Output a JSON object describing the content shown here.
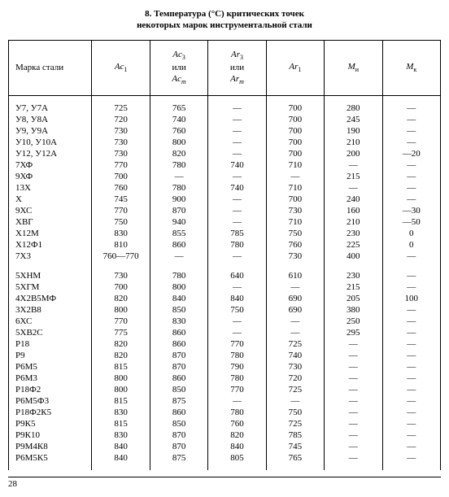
{
  "title_line1": "8. Температура (°C) критических точек",
  "title_line2": "некоторых марок инструментальной стали",
  "headers": {
    "name": "Марка стали",
    "ac1": "Ac₁",
    "ac3": "Ac₃\nили\nAcₘ",
    "ar3": "Ar₃\nили\nArₘ",
    "ar1": "Ar₁",
    "mi": "Mи",
    "mk": "Mк"
  },
  "rows_group1": [
    {
      "name": "У7, У7А",
      "ac1": "725",
      "ac3": "765",
      "ar3": "—",
      "ar1": "700",
      "mi": "280",
      "mk": "—"
    },
    {
      "name": "У8, У8А",
      "ac1": "720",
      "ac3": "740",
      "ar3": "—",
      "ar1": "700",
      "mi": "245",
      "mk": "—"
    },
    {
      "name": "У9, У9А",
      "ac1": "730",
      "ac3": "760",
      "ar3": "—",
      "ar1": "700",
      "mi": "190",
      "mk": "—"
    },
    {
      "name": "У10, У10А",
      "ac1": "730",
      "ac3": "800",
      "ar3": "—",
      "ar1": "700",
      "mi": "210",
      "mk": "—"
    },
    {
      "name": "У12, У12А",
      "ac1": "730",
      "ac3": "820",
      "ar3": "—",
      "ar1": "700",
      "mi": "200",
      "mk": "—20"
    },
    {
      "name": "7ХФ",
      "ac1": "770",
      "ac3": "780",
      "ar3": "740",
      "ar1": "710",
      "mi": "—",
      "mk": "—"
    },
    {
      "name": "9ХФ",
      "ac1": "700",
      "ac3": "—",
      "ar3": "—",
      "ar1": "—",
      "mi": "215",
      "mk": "—"
    },
    {
      "name": "13Х",
      "ac1": "760",
      "ac3": "780",
      "ar3": "740",
      "ar1": "710",
      "mi": "—",
      "mk": "—"
    },
    {
      "name": "Х",
      "ac1": "745",
      "ac3": "900",
      "ar3": "—",
      "ar1": "700",
      "mi": "240",
      "mk": "—"
    },
    {
      "name": "9ХС",
      "ac1": "770",
      "ac3": "870",
      "ar3": "—",
      "ar1": "730",
      "mi": "160",
      "mk": "—30"
    },
    {
      "name": "ХВГ",
      "ac1": "750",
      "ac3": "940",
      "ar3": "—",
      "ar1": "710",
      "mi": "210",
      "mk": "—50"
    },
    {
      "name": "Х12М",
      "ac1": "830",
      "ac3": "855",
      "ar3": "785",
      "ar1": "750",
      "mi": "230",
      "mk": "0"
    },
    {
      "name": "Х12Ф1",
      "ac1": "810",
      "ac3": "860",
      "ar3": "780",
      "ar1": "760",
      "mi": "225",
      "mk": "0"
    },
    {
      "name": "7Х3",
      "ac1": "760—770",
      "ac3": "—",
      "ar3": "—",
      "ar1": "730",
      "mi": "400",
      "mk": "—"
    }
  ],
  "rows_group2": [
    {
      "name": "5ХНМ",
      "ac1": "730",
      "ac3": "780",
      "ar3": "640",
      "ar1": "610",
      "mi": "230",
      "mk": "—"
    },
    {
      "name": "5ХГМ",
      "ac1": "700",
      "ac3": "800",
      "ar3": "—",
      "ar1": "—",
      "mi": "215",
      "mk": "—"
    },
    {
      "name": "4Х2В5МФ",
      "ac1": "820",
      "ac3": "840",
      "ar3": "840",
      "ar1": "690",
      "mi": "205",
      "mk": "100"
    },
    {
      "name": "3Х2В8",
      "ac1": "800",
      "ac3": "850",
      "ar3": "750",
      "ar1": "690",
      "mi": "380",
      "mk": "—"
    },
    {
      "name": "6ХС",
      "ac1": "770",
      "ac3": "830",
      "ar3": "—",
      "ar1": "—",
      "mi": "250",
      "mk": "—"
    },
    {
      "name": "5ХВ2С",
      "ac1": "775",
      "ac3": "860",
      "ar3": "—",
      "ar1": "—",
      "mi": "295",
      "mk": "—"
    },
    {
      "name": "Р18",
      "ac1": "820",
      "ac3": "860",
      "ar3": "770",
      "ar1": "725",
      "mi": "—",
      "mk": "—"
    },
    {
      "name": "Р9",
      "ac1": "820",
      "ac3": "870",
      "ar3": "780",
      "ar1": "740",
      "mi": "—",
      "mk": "—"
    },
    {
      "name": "Р6М5",
      "ac1": "815",
      "ac3": "870",
      "ar3": "790",
      "ar1": "730",
      "mi": "—",
      "mk": "—"
    },
    {
      "name": "Р6М3",
      "ac1": "800",
      "ac3": "860",
      "ar3": "780",
      "ar1": "720",
      "mi": "—",
      "mk": "—"
    },
    {
      "name": "Р18Ф2",
      "ac1": "800",
      "ac3": "850",
      "ar3": "770",
      "ar1": "725",
      "mi": "—",
      "mk": "—"
    },
    {
      "name": "Р6М5Ф3",
      "ac1": "815",
      "ac3": "875",
      "ar3": "—",
      "ar1": "—",
      "mi": "—",
      "mk": "—"
    },
    {
      "name": "Р18Ф2К5",
      "ac1": "830",
      "ac3": "860",
      "ar3": "780",
      "ar1": "750",
      "mi": "—",
      "mk": "—"
    },
    {
      "name": "Р9К5",
      "ac1": "815",
      "ac3": "850",
      "ar3": "760",
      "ar1": "725",
      "mi": "—",
      "mk": "—"
    },
    {
      "name": "Р9К10",
      "ac1": "830",
      "ac3": "870",
      "ar3": "820",
      "ar1": "785",
      "mi": "—",
      "mk": "—"
    },
    {
      "name": "Р9М4К8",
      "ac1": "840",
      "ac3": "870",
      "ar3": "840",
      "ar1": "745",
      "mi": "—",
      "mk": "—"
    },
    {
      "name": "Р6М5К5",
      "ac1": "840",
      "ac3": "875",
      "ar3": "805",
      "ar1": "765",
      "mi": "—",
      "mk": "—"
    }
  ],
  "page_num": "28"
}
